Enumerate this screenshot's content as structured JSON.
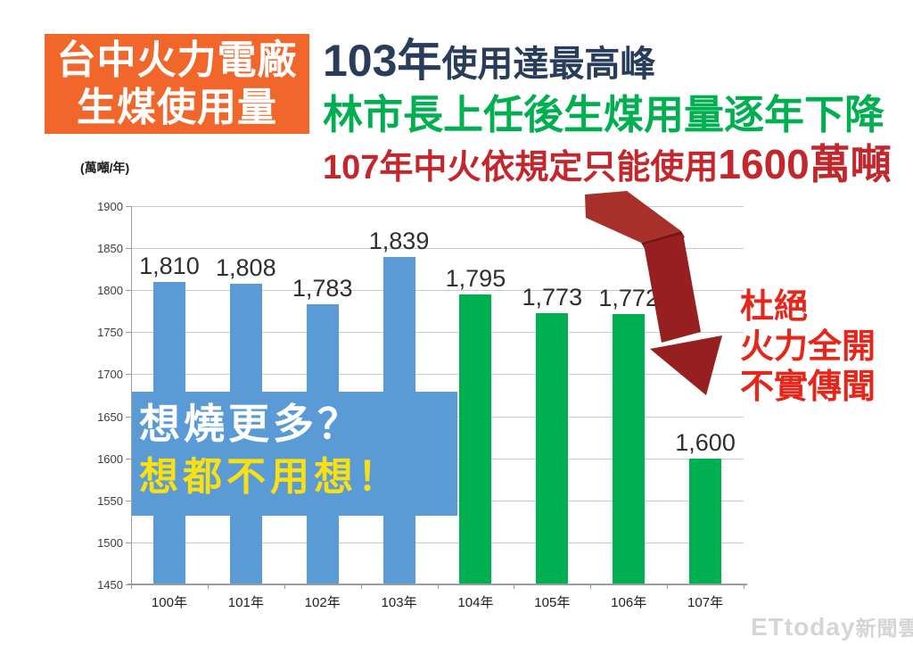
{
  "header": {
    "badge": {
      "line1": "台中火力電廠",
      "line2": "生煤使用量"
    },
    "line1_prefix": "103年",
    "line1_rest": "使用達最高峰",
    "line2": "林市長上任後生煤用量逐年下降",
    "line3_prefix": "107年中火依規定只能使用",
    "line3_highlight": "1600萬噸"
  },
  "chart_data": {
    "type": "bar",
    "unit_label": "(萬噸/年)",
    "categories": [
      "100年",
      "101年",
      "102年",
      "103年",
      "104年",
      "105年",
      "106年",
      "107年"
    ],
    "values": [
      1810,
      1808,
      1783,
      1839,
      1795,
      1773,
      1772,
      1600
    ],
    "value_labels": [
      "1,810",
      "1,808",
      "1,783",
      "1,839",
      "1,795",
      "1,773",
      "1,772",
      "1,600"
    ],
    "bar_color_keys": [
      "blue",
      "blue",
      "blue",
      "blue",
      "green",
      "green",
      "green",
      "green"
    ],
    "ylim": [
      1450,
      1900
    ],
    "yticks": [
      1900,
      1850,
      1800,
      1750,
      1700,
      1650,
      1600,
      1550,
      1500,
      1450
    ],
    "grid": true,
    "legend_position": "none",
    "xlabel": "",
    "ylabel": ""
  },
  "overlay_box": {
    "line1": "想燒更多？",
    "line2": "想都不用想！"
  },
  "annotation": {
    "lines": [
      "杜絕",
      "火力全開",
      "不實傳聞"
    ]
  },
  "arrow": {
    "colors": {
      "band": "#A8302A",
      "fold": "#7A1315",
      "shaft": "#96201F",
      "head": "#96201F"
    }
  },
  "watermark": {
    "brand": "ETtoday",
    "suffix": "新聞雲"
  },
  "colors": {
    "badge_bg": "#F1662B",
    "badge_text": "#FFFFFF",
    "navy": "#293D5A",
    "green": "#00B050",
    "red_line3": "#C3262B",
    "bar_blue": "#5B9BD5",
    "bar_green": "#00B050",
    "overlay_bg": "#5B9BD5",
    "overlay_line1": "#FFFFFF",
    "overlay_line2": "#F8E014",
    "annotation_red": "#E5261B",
    "watermark_gray": "#D5D5D5"
  }
}
